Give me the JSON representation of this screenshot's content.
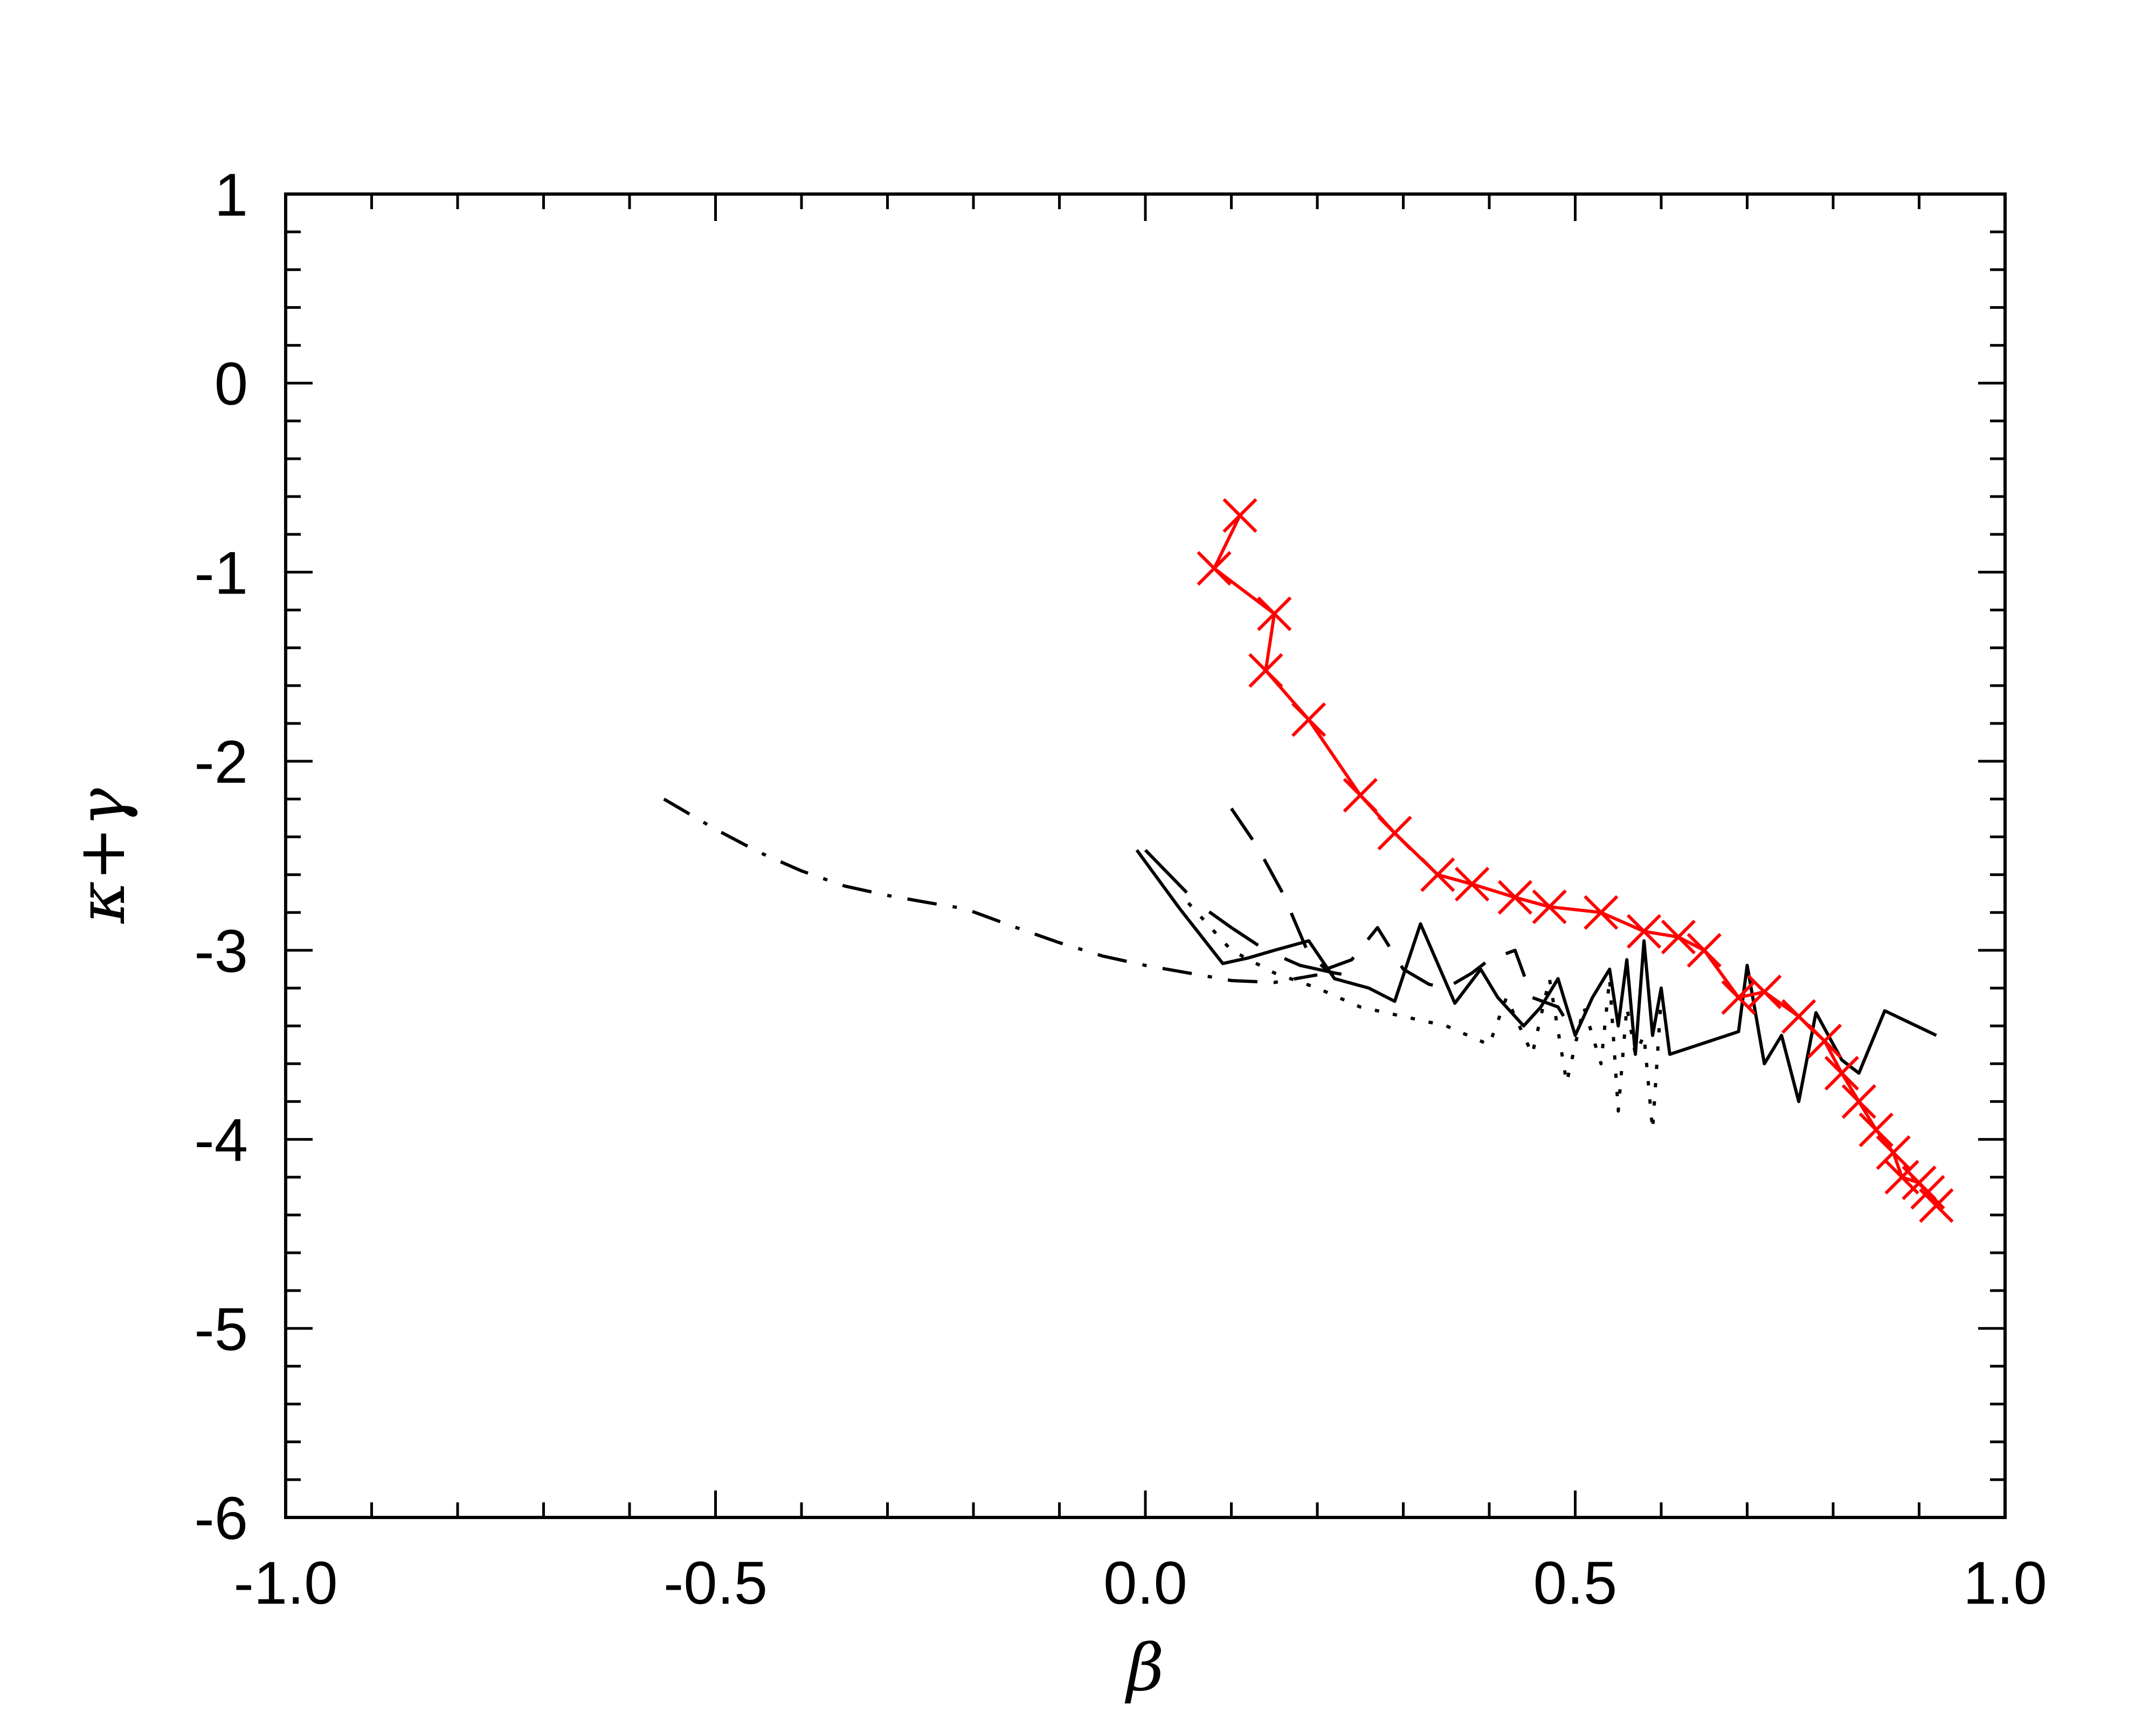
{
  "chart_data": {
    "type": "line",
    "xlabel": "β",
    "ylabel": "κ+γ",
    "xlim": [
      -1.0,
      1.0
    ],
    "ylim": [
      -6,
      1
    ],
    "x_ticks": [
      -1.0,
      -0.5,
      0.0,
      0.5,
      1.0
    ],
    "x_tick_labels": [
      "-1.0",
      "-0.5",
      "0.0",
      "0.5",
      "1.0"
    ],
    "y_ticks": [
      1,
      0,
      -1,
      -2,
      -3,
      -4,
      -5,
      -6
    ],
    "y_tick_labels": [
      "1",
      "0",
      "-1",
      "-2",
      "-3",
      "-4",
      "-5",
      "-6"
    ],
    "grid": false,
    "series": [
      {
        "style": "dashdot",
        "color": "#000000",
        "x": [
          -0.56,
          -0.5,
          -0.45,
          -0.4,
          -0.35,
          -0.3,
          -0.25,
          -0.21,
          -0.15,
          -0.1,
          -0.05,
          0.0,
          0.05,
          0.1,
          0.15,
          0.2
        ],
        "y": [
          -2.2,
          -2.36,
          -2.48,
          -2.58,
          -2.66,
          -2.71,
          -2.75,
          -2.78,
          -2.88,
          -2.96,
          -3.03,
          -3.08,
          -3.12,
          -3.16,
          -3.17,
          -3.13
        ]
      },
      {
        "style": "solid",
        "color": "#000000",
        "x": [
          -0.01,
          0.04,
          0.09,
          0.12,
          0.15,
          0.19,
          0.22,
          0.26,
          0.29,
          0.32,
          0.36,
          0.39,
          0.41,
          0.44,
          0.46,
          0.48,
          0.5,
          0.52,
          0.54,
          0.55,
          0.56,
          0.57,
          0.58,
          0.59,
          0.6,
          0.61,
          0.69,
          0.7,
          0.72,
          0.74,
          0.76,
          0.78,
          0.81,
          0.83,
          0.86,
          0.92
        ],
        "y": [
          -2.47,
          -2.78,
          -3.07,
          -3.04,
          -3.0,
          -2.95,
          -3.15,
          -3.2,
          -3.27,
          -2.86,
          -3.28,
          -3.1,
          -3.25,
          -3.4,
          -3.3,
          -3.15,
          -3.45,
          -3.25,
          -3.1,
          -3.4,
          -3.05,
          -3.55,
          -2.95,
          -3.45,
          -3.2,
          -3.55,
          -3.43,
          -3.08,
          -3.6,
          -3.45,
          -3.8,
          -3.33,
          -3.58,
          -3.65,
          -3.32,
          -3.45
        ]
      },
      {
        "style": "dashed",
        "color": "#000000",
        "x": [
          0.1,
          0.13,
          0.16,
          0.19,
          0.21,
          0.24,
          0.27,
          0.3,
          0.33,
          0.35,
          0.38,
          0.4,
          0.43,
          0.45,
          0.48,
          0.5
        ],
        "y": [
          -2.25,
          -2.45,
          -2.7,
          -3.02,
          -3.1,
          -3.05,
          -2.88,
          -3.1,
          -3.18,
          -3.2,
          -3.12,
          -3.05,
          -3.0,
          -3.25,
          -3.3,
          -3.45
        ]
      },
      {
        "style": "longdash",
        "color": "#000000",
        "x": [
          0.0,
          0.06,
          0.1,
          0.14,
          0.18,
          0.22,
          0.26
        ],
        "y": [
          -2.47,
          -2.75,
          -2.88,
          -3.0,
          -3.08,
          -3.12,
          -3.15
        ]
      },
      {
        "style": "dotted",
        "color": "#000000",
        "x": [
          0.05,
          0.1,
          0.15,
          0.2,
          0.25,
          0.3,
          0.35,
          0.4,
          0.42,
          0.45,
          0.47,
          0.49,
          0.51,
          0.53,
          0.54,
          0.55,
          0.56,
          0.57,
          0.58,
          0.59,
          0.6
        ],
        "y": [
          -2.75,
          -3.0,
          -3.12,
          -3.2,
          -3.3,
          -3.35,
          -3.4,
          -3.5,
          -3.25,
          -3.55,
          -3.15,
          -3.7,
          -3.3,
          -3.6,
          -3.15,
          -3.85,
          -3.3,
          -3.55,
          -3.45,
          -3.95,
          -3.25
        ]
      },
      {
        "style": "solid",
        "color": "#ff0000",
        "marker": "x",
        "x": [
          0.11,
          0.08,
          0.15,
          0.14,
          0.19,
          0.25,
          0.29,
          0.34,
          0.38,
          0.43,
          0.47,
          0.53,
          0.58,
          0.62,
          0.65,
          0.69,
          0.72,
          0.76,
          0.79,
          0.81,
          0.83,
          0.85,
          0.87,
          0.88,
          0.9,
          0.91,
          0.92
        ],
        "y": [
          -0.7,
          -0.98,
          -1.22,
          -1.52,
          -1.78,
          -2.18,
          -2.38,
          -2.6,
          -2.65,
          -2.72,
          -2.77,
          -2.8,
          -2.9,
          -2.93,
          -3.0,
          -3.25,
          -3.22,
          -3.35,
          -3.48,
          -3.65,
          -3.8,
          -3.95,
          -4.07,
          -4.2,
          -4.23,
          -4.28,
          -4.35
        ]
      }
    ]
  }
}
